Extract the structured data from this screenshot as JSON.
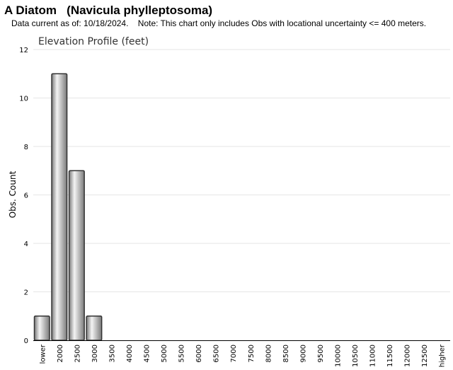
{
  "header": {
    "title": "A Diatom   (Navicula phylleptosoma)",
    "subtitle": "Data current as of: 10/18/2024.    Note: This chart only includes Obs with locational uncertainty <= 400 meters."
  },
  "chart_data": {
    "type": "bar",
    "title": "Elevation Profile (feet)",
    "xlabel": "",
    "ylabel": "Obs. Count",
    "categories": [
      "lower",
      "2000",
      "2500",
      "3000",
      "3500",
      "4000",
      "4500",
      "5000",
      "5500",
      "6000",
      "6500",
      "7000",
      "7500",
      "8000",
      "8500",
      "9000",
      "9500",
      "10000",
      "10500",
      "11000",
      "11500",
      "12000",
      "12500",
      "higher"
    ],
    "values": [
      1,
      11,
      7,
      1,
      0,
      0,
      0,
      0,
      0,
      0,
      0,
      0,
      0,
      0,
      0,
      0,
      0,
      0,
      0,
      0,
      0,
      0,
      0,
      0
    ],
    "ylim": [
      0,
      12
    ],
    "yticks": [
      0,
      2,
      4,
      6,
      8,
      10,
      12
    ],
    "grid": true,
    "legend": "none",
    "colors": {
      "bar_light": "#f4f4f4",
      "bar_dark": "#7a7a7a",
      "bar_stroke": "#333333",
      "grid": "#e6e6e6"
    }
  }
}
